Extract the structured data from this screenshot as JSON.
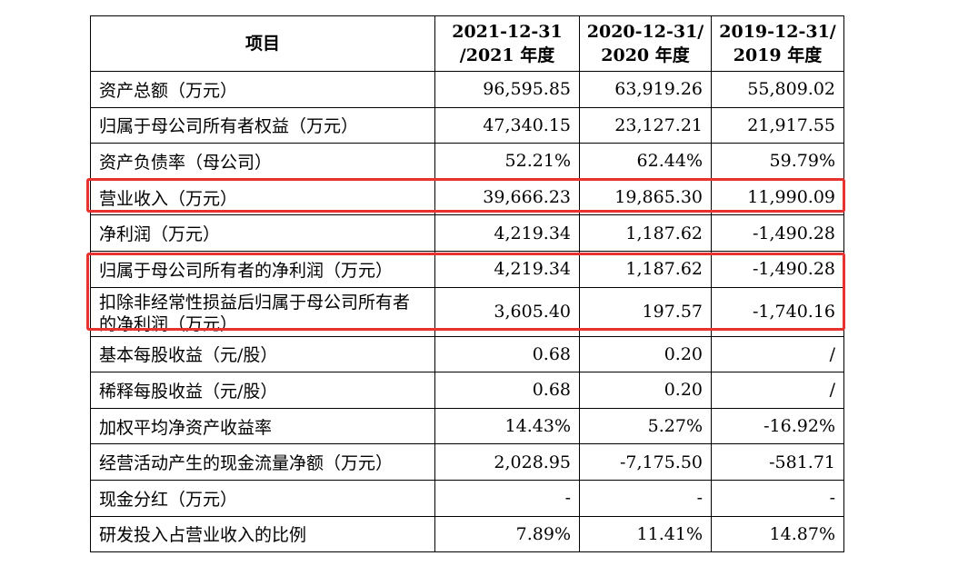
{
  "table": {
    "headers": [
      {
        "line1": "项目",
        "line2": ""
      },
      {
        "line1": "2021-12-31",
        "line2": "/2021 年度"
      },
      {
        "line1": "2020-12-31/",
        "line2": "2020 年度"
      },
      {
        "line1": "2019-12-31/",
        "line2": "2019 年度"
      }
    ],
    "rows": [
      {
        "item": "资产总额（万元）",
        "v2021": "96,595.85",
        "v2020": "63,919.26",
        "v2019": "55,809.02"
      },
      {
        "item": "归属于母公司所有者权益（万元）",
        "v2021": "47,340.15",
        "v2020": "23,127.21",
        "v2019": "21,917.55"
      },
      {
        "item": "资产负债率（母公司）",
        "v2021": "52.21%",
        "v2020": "62.44%",
        "v2019": "59.79%"
      },
      {
        "item": "营业收入（万元）",
        "v2021": "39,666.23",
        "v2020": "19,865.30",
        "v2019": "11,990.09"
      },
      {
        "item": "净利润（万元）",
        "v2021": "4,219.34",
        "v2020": "1,187.62",
        "v2019": "-1,490.28"
      },
      {
        "item": "归属于母公司所有者的净利润（万元）",
        "v2021": "4,219.34",
        "v2020": "1,187.62",
        "v2019": "-1,490.28"
      },
      {
        "item": "扣除非经常性损益后归属于母公司所有者的净利润（万元）",
        "v2021": "3,605.40",
        "v2020": "197.57",
        "v2019": "-1,740.16"
      },
      {
        "item": "基本每股收益（元/股）",
        "v2021": "0.68",
        "v2020": "0.20",
        "v2019": "/"
      },
      {
        "item": "稀释每股收益（元/股）",
        "v2021": "0.68",
        "v2020": "0.20",
        "v2019": "/"
      },
      {
        "item": "加权平均净资产收益率",
        "v2021": "14.43%",
        "v2020": "5.27%",
        "v2019": "-16.92%"
      },
      {
        "item": "经营活动产生的现金流量净额（万元）",
        "v2021": "2,028.95",
        "v2020": "-7,175.50",
        "v2019": "-581.71"
      },
      {
        "item": "现金分红（万元）",
        "v2021": "-",
        "v2020": "-",
        "v2019": "-"
      },
      {
        "item": "研发投入占营业收入的比例",
        "v2021": "7.89%",
        "v2020": "11.41%",
        "v2019": "14.87%"
      }
    ]
  },
  "highlight_color": "#e8322f"
}
